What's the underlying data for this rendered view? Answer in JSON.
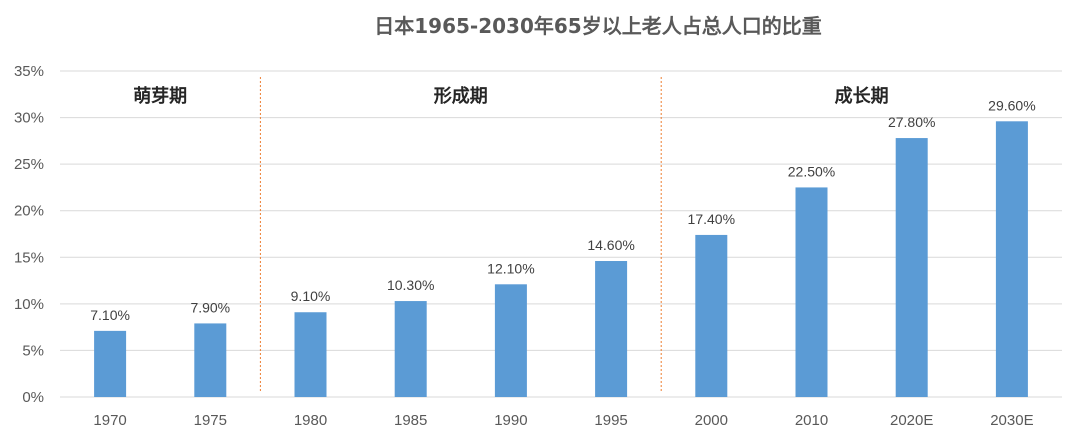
{
  "chart_data": {
    "type": "bar",
    "title": "日本1965-2030年65岁以上老人占总人口的比重",
    "categories": [
      "1970",
      "1975",
      "1980",
      "1985",
      "1990",
      "1995",
      "2000",
      "2010",
      "2020E",
      "2030E"
    ],
    "values": [
      7.1,
      7.9,
      9.1,
      10.3,
      12.1,
      14.6,
      17.4,
      22.5,
      27.8,
      29.6
    ],
    "data_labels": [
      "7.10%",
      "7.90%",
      "9.10%",
      "10.30%",
      "12.10%",
      "14.60%",
      "17.40%",
      "22.50%",
      "27.80%",
      "29.60%"
    ],
    "ylim": [
      0,
      35
    ],
    "y_ticks": [
      "0%",
      "5%",
      "10%",
      "15%",
      "20%",
      "25%",
      "30%",
      "35%"
    ],
    "grid": true,
    "bar_color": "#5b9bd5",
    "divider_color": "#ed7d31",
    "phases": [
      {
        "label": "萌芽期",
        "start": 0,
        "end": 1
      },
      {
        "label": "形成期",
        "start": 2,
        "end": 5
      },
      {
        "label": "成长期",
        "start": 6,
        "end": 9
      }
    ]
  }
}
